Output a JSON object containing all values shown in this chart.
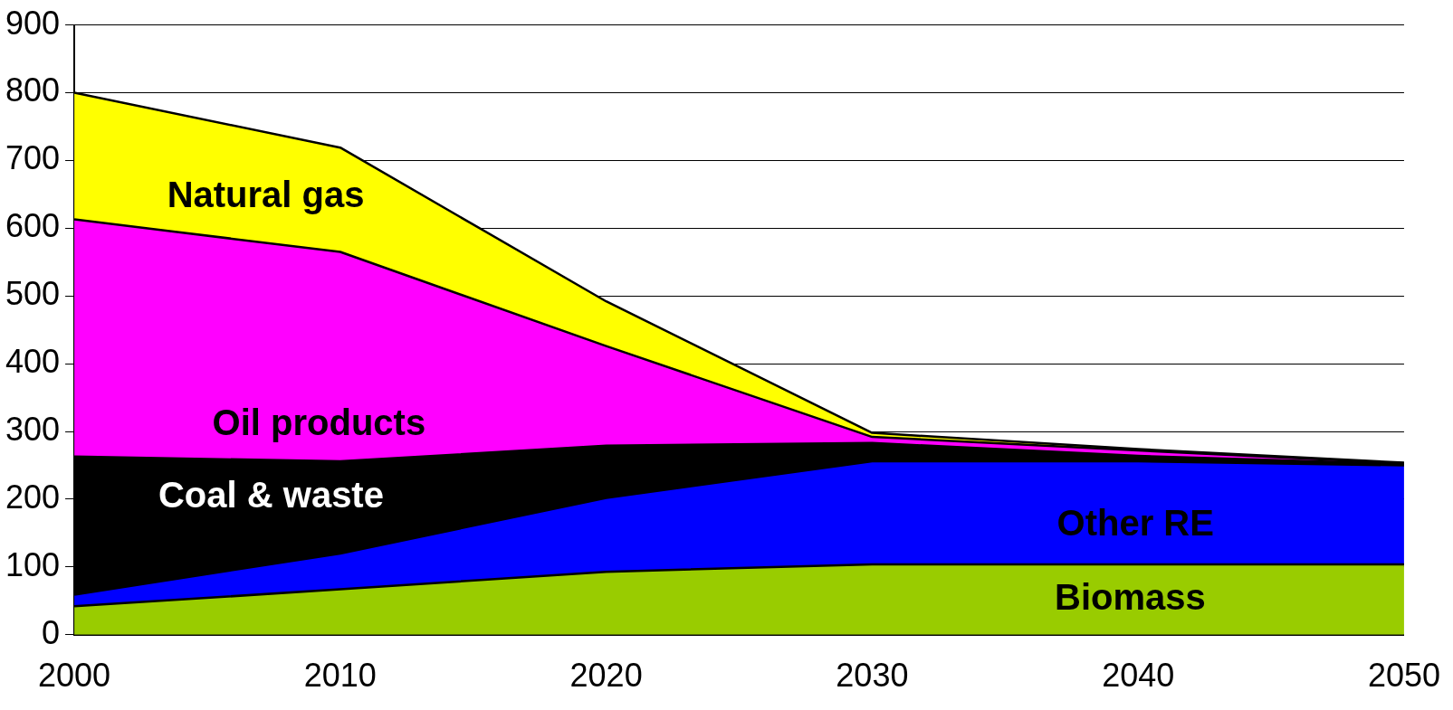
{
  "chart_data": {
    "type": "area",
    "stacked": true,
    "x": [
      2000,
      2010,
      2020,
      2030,
      2040,
      2050
    ],
    "series": [
      {
        "name": "Biomass",
        "color": "#99cc00",
        "values": [
          42,
          67,
          93,
          104,
          104,
          104
        ]
      },
      {
        "name": "Other RE",
        "color": "#0000ff",
        "values": [
          17,
          53,
          109,
          152,
          152,
          146
        ]
      },
      {
        "name": "Coal & waste",
        "color": "#000000",
        "values": [
          204,
          136,
          77,
          27,
          8,
          2
        ]
      },
      {
        "name": "Oil products",
        "color": "#ff00ff",
        "values": [
          350,
          309,
          147,
          9,
          8,
          1
        ]
      },
      {
        "name": "Natural gas",
        "color": "#ffff00",
        "values": [
          187,
          154,
          66,
          6,
          2,
          1
        ]
      }
    ],
    "xlim": [
      2000,
      2050
    ],
    "xticks": [
      2000,
      2010,
      2020,
      2030,
      2040,
      2050
    ],
    "ylim": [
      0,
      900
    ],
    "yticks": [
      0,
      100,
      200,
      300,
      400,
      500,
      600,
      700,
      800,
      900
    ],
    "grid": "y",
    "legend": false
  }
}
